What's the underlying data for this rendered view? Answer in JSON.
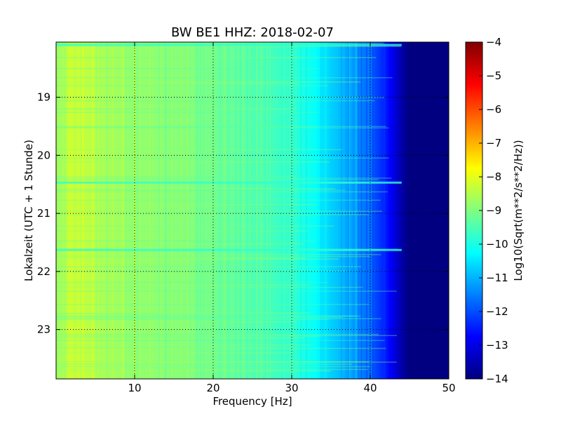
{
  "chart_data": {
    "type": "heatmap",
    "title": "BW BE1 HHZ: 2018-02-07",
    "xlabel": "Frequency [Hz]",
    "ylabel": "Lokalzeit (UTC + 1 Stunde)",
    "xlim": [
      0,
      50
    ],
    "ylim": [
      18.05,
      23.85
    ],
    "y_inverted": true,
    "x_ticks": [
      10,
      20,
      30,
      40,
      50
    ],
    "x_tick_labels": [
      "10",
      "20",
      "30",
      "40",
      "50"
    ],
    "y_ticks": [
      19,
      20,
      21,
      22,
      23
    ],
    "y_tick_labels": [
      "19",
      "20",
      "21",
      "22",
      "23"
    ],
    "grid": true,
    "colormap": "jet",
    "colorbar": {
      "label": "Log10(Sqrt(m**2/s**2/Hz))",
      "min": -14,
      "max": -4,
      "ticks": [
        -4,
        -5,
        -6,
        -7,
        -8,
        -9,
        -10,
        -11,
        -12,
        -13,
        -14
      ],
      "tick_labels": [
        "−4",
        "−5",
        "−6",
        "−7",
        "−8",
        "−9",
        "−10",
        "−11",
        "−12",
        "−13",
        "−14"
      ]
    },
    "profile": {
      "frequency_hz": [
        0,
        2,
        5,
        8,
        10,
        15,
        20,
        25,
        30,
        33,
        35,
        38,
        40,
        42,
        43,
        44,
        45,
        50
      ],
      "log10_amplitude": [
        -8.9,
        -8.2,
        -8.5,
        -8.7,
        -8.8,
        -8.9,
        -9.1,
        -9.4,
        -9.8,
        -10.2,
        -10.7,
        -11.2,
        -11.8,
        -12.5,
        -13.0,
        -13.6,
        -14.0,
        -14.0
      ]
    },
    "notable_events": [
      {
        "time": 18.1,
        "note": "horizontal band extending to ~44 Hz"
      },
      {
        "time": 20.47,
        "note": "horizontal band"
      },
      {
        "time": 21.63,
        "note": "horizontal band extending to ~43 Hz"
      }
    ]
  }
}
